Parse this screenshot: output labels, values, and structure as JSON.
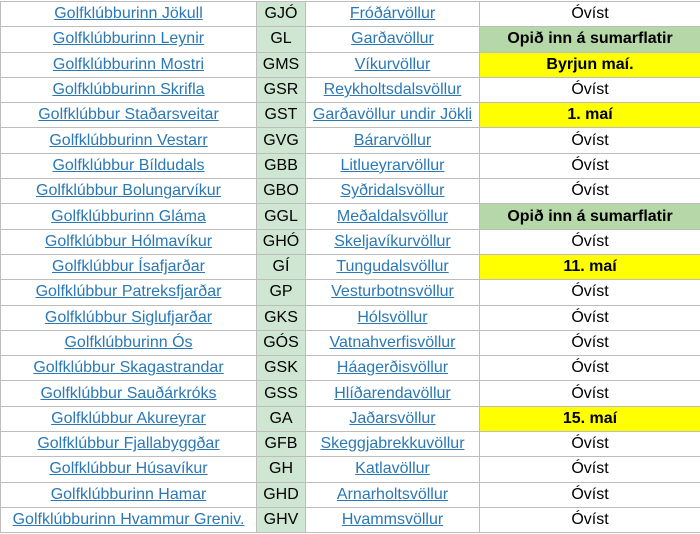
{
  "table": {
    "code_fill": "#cfe6d3",
    "rows": [
      {
        "club": "Golfklúbburinn Jökull",
        "code": "GJÓ",
        "course": "Fróðárvöllur",
        "status": "Óvíst",
        "status_fill": "#ffffff"
      },
      {
        "club": "Golfklúbburinn Leynir",
        "code": "GL",
        "course": "Garðavöllur",
        "status": "Opið inn á sumarflatir",
        "status_fill": "#b6d7a8"
      },
      {
        "club": "Golfklúbburinn Mostri",
        "code": "GMS",
        "course": "Víkurvöllur",
        "status": "Byrjun maí.",
        "status_fill": "#ffff00"
      },
      {
        "club": "Golfklúbburinn Skrifla",
        "code": "GSR",
        "course": "Reykholtsdalsvöllur",
        "status": "Óvíst",
        "status_fill": "#ffffff"
      },
      {
        "club": "Golfklúbbur Staðarsveitar",
        "code": "GST",
        "course": "Garðavöllur undir Jökli",
        "status": "1. maí",
        "status_fill": "#ffff00"
      },
      {
        "club": "Golfklúbburinn Vestarr",
        "code": "GVG",
        "course": "Bárarvöllur",
        "status": "Óvíst",
        "status_fill": "#ffffff"
      },
      {
        "club": "Golfklúbbur Bíldudals",
        "code": "GBB",
        "course": "Litlueyrarvöllur",
        "status": "Óvíst",
        "status_fill": "#ffffff"
      },
      {
        "club": "Golfklúbbur Bolungarvíkur",
        "code": "GBO",
        "course": "Syðridalsvöllur",
        "status": "Óvíst",
        "status_fill": "#ffffff"
      },
      {
        "club": "Golfklúbburinn Gláma",
        "code": "GGL",
        "course": "Meðaldalsvöllur",
        "status": "Opið inn á sumarflatir",
        "status_fill": "#b6d7a8"
      },
      {
        "club": "Golfklúbbur Hólmavíkur",
        "code": "GHÓ",
        "course": "Skeljavíkurvöllur",
        "status": "Óvíst",
        "status_fill": "#ffffff"
      },
      {
        "club": "Golfklúbbur Ísafjarðar",
        "code": "GÍ",
        "course": "Tungudalsvöllur",
        "status": "11. maí",
        "status_fill": "#ffff00"
      },
      {
        "club": "Golfklúbbur Patreksfjarðar",
        "code": "GP",
        "course": "Vesturbotnsvöllur",
        "status": "Óvíst",
        "status_fill": "#ffffff"
      },
      {
        "club": "Golfklúbbur Siglufjarðar",
        "code": "GKS",
        "course": "Hólsvöllur",
        "status": "Óvíst",
        "status_fill": "#ffffff"
      },
      {
        "club": "Golfklúbburinn Ós",
        "code": "GÓS",
        "course": "Vatnahverfisvöllur",
        "status": "Óvíst",
        "status_fill": "#ffffff"
      },
      {
        "club": "Golfklúbbur Skagastrandar",
        "code": "GSK",
        "course": "Háagerðisvöllur",
        "status": "Óvíst",
        "status_fill": "#ffffff"
      },
      {
        "club": "Golfklúbbur Sauðárkróks",
        "code": "GSS",
        "course": "Hlíðarendavöllur",
        "status": "Óvíst",
        "status_fill": "#ffffff"
      },
      {
        "club": "Golfklúbbur Akureyrar",
        "code": "GA",
        "course": "Jaðarsvöllur",
        "status": "15. maí",
        "status_fill": "#ffff00"
      },
      {
        "club": "Golfklúbbur Fjallabyggðar",
        "code": "GFB",
        "course": "Skeggjabrekkuvöllur",
        "status": "Óvíst",
        "status_fill": "#ffffff"
      },
      {
        "club": "Golfklúbbur Húsavíkur",
        "code": "GH",
        "course": "Katlavöllur",
        "status": "Óvíst",
        "status_fill": "#ffffff"
      },
      {
        "club": "Golfklúbburinn Hamar",
        "code": "GHD",
        "course": "Arnarholtsvöllur",
        "status": "Óvíst",
        "status_fill": "#ffffff"
      },
      {
        "club": "Golfklúbburinn Hvammur Greniv.",
        "code": "GHV",
        "course": "Hvammsvöllur",
        "status": "Óvíst",
        "status_fill": "#ffffff"
      }
    ]
  }
}
